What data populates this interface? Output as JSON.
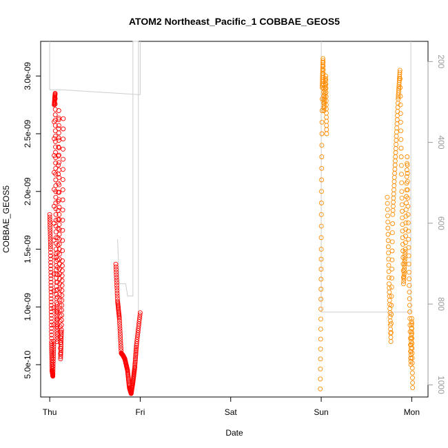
{
  "chart_data": {
    "type": "scatter",
    "title": "ATOM2 Northeast_Pacific_1 COBBAE_GEOS5",
    "xlabel": "Date",
    "ylabel": "COBBAE_GEOS5",
    "x_ticks": [
      "Thu",
      "Fri",
      "Sat",
      "Sun",
      "Mon"
    ],
    "x_range": [
      -0.1,
      4.18
    ],
    "y_ticks": [
      "5.0e-10",
      "1.0e-09",
      "1.5e-09",
      "2.0e-09",
      "2.5e-09",
      "3.0e-09"
    ],
    "y_tick_values": [
      5e-10,
      1e-09,
      1.5e-09,
      2e-09,
      2.5e-09,
      3e-09
    ],
    "y_range": [
      2.2e-10,
      3.3e-09
    ],
    "y2_ticks": [
      "200",
      "400",
      "600",
      "800",
      "1000"
    ],
    "y2_tick_values": [
      200,
      400,
      600,
      800,
      1000
    ],
    "y2_range": [
      1030,
      150
    ],
    "colors": {
      "series1": "#ff0000",
      "series2": "#ff8c00",
      "y2_line": "#cccccc",
      "frame": "#000000"
    },
    "series": [
      {
        "color": "#ff0000",
        "segments": [
          [
            [
              0.0,
              1.8e-09
            ],
            [
              0.01,
              1.5e-09
            ],
            [
              0.015,
              1.1e-09
            ],
            [
              0.02,
              7e-10
            ],
            [
              0.025,
              4.5e-10
            ],
            [
              0.035,
              4e-10
            ],
            [
              0.045,
              7e-10
            ],
            [
              0.05,
              2.75e-09
            ],
            [
              0.06,
              2.85e-09
            ],
            [
              0.065,
              2.2e-09
            ],
            [
              0.07,
              1.5e-09
            ],
            [
              0.075,
              1e-09
            ],
            [
              0.08,
              7e-10
            ],
            [
              0.09,
              1.6e-09
            ],
            [
              0.1,
              2.7e-09
            ],
            [
              0.105,
              1.8e-09
            ],
            [
              0.11,
              1.2e-09
            ],
            [
              0.12,
              5.5e-10
            ],
            [
              0.13,
              8e-10
            ],
            [
              0.14,
              1.4e-09
            ],
            [
              0.15,
              2.63e-09
            ]
          ],
          [
            [
              0.73,
              1.37e-09
            ],
            [
              0.75,
              1.05e-09
            ],
            [
              0.77,
              9e-10
            ],
            [
              0.79,
              6e-10
            ],
            [
              0.81,
              5.8e-10
            ],
            [
              0.83,
              5.5e-10
            ],
            [
              0.86,
              4.5e-10
            ],
            [
              0.88,
              3e-10
            ],
            [
              0.9,
              2.5e-10
            ],
            [
              0.92,
              3.5e-10
            ],
            [
              0.94,
              4.8e-10
            ],
            [
              0.96,
              6.8e-10
            ],
            [
              1.0,
              9.5e-10
            ]
          ]
        ]
      },
      {
        "color": "#ff8c00",
        "segments": [
          [
            [
              2.99,
              2.9e-10
            ],
            [
              3.0,
              1.5e-09
            ],
            [
              3.01,
              2.9e-09
            ],
            [
              3.02,
              3.15e-09
            ],
            [
              3.03,
              2.7e-09
            ],
            [
              3.05,
              3e-09
            ],
            [
              3.06,
              2.5e-09
            ]
          ],
          [
            [
              3.73,
              1.95e-09
            ],
            [
              3.75,
              1.2e-09
            ],
            [
              3.77,
              7e-10
            ],
            [
              3.79,
              1.8e-09
            ],
            [
              3.82,
              2.3e-09
            ],
            [
              3.85,
              2.8e-09
            ],
            [
              3.87,
              3.05e-09
            ],
            [
              3.89,
              2e-09
            ],
            [
              3.91,
              1.2e-09
            ],
            [
              3.93,
              1.5e-09
            ],
            [
              3.95,
              2.3e-09
            ],
            [
              3.97,
              1.3e-09
            ],
            [
              3.99,
              5e-10
            ],
            [
              4.0,
              9e-10
            ],
            [
              4.01,
              3e-10
            ]
          ]
        ]
      }
    ],
    "y2_series": [
      [
        [
          0.0,
          150
        ],
        [
          0.0,
          270
        ],
        [
          0.15,
          270
        ],
        [
          1.0,
          282
        ],
        [
          1.0,
          150
        ]
      ],
      [
        [
          0.75,
          640
        ],
        [
          0.77,
          750
        ],
        [
          0.84,
          750
        ],
        [
          0.86,
          780
        ],
        [
          0.92,
          780
        ],
        [
          0.92,
          150
        ],
        [
          0.98,
          150
        ],
        [
          0.98,
          820
        ]
      ],
      [
        [
          3.0,
          150
        ],
        [
          3.0,
          820
        ],
        [
          3.99,
          820
        ],
        [
          3.99,
          150
        ]
      ]
    ]
  }
}
